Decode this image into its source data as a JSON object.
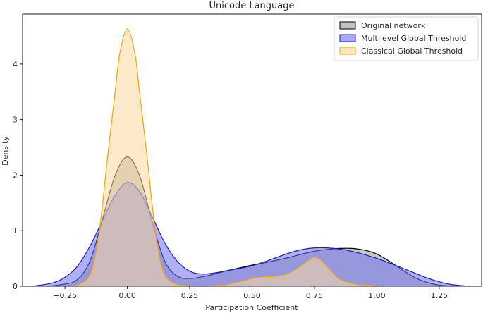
{
  "chart_data": {
    "type": "area",
    "title": "Unicode Language",
    "xlabel": "Participation Coefficient",
    "ylabel": "Density",
    "xlim": [
      -0.42,
      1.42
    ],
    "ylim": [
      0,
      4.9
    ],
    "xticks": [
      -0.25,
      0.0,
      0.25,
      0.5,
      0.75,
      1.0,
      1.25
    ],
    "xtick_labels": [
      "−0.25",
      "0.00",
      "0.25",
      "0.50",
      "0.75",
      "1.00",
      "1.25"
    ],
    "yticks": [
      0,
      1,
      2,
      3,
      4
    ],
    "ytick_labels": [
      "0",
      "1",
      "2",
      "3",
      "4"
    ],
    "grid": false,
    "legend_position": "top-right",
    "series": [
      {
        "name": "Original network",
        "color": "#000000",
        "fill": "#9a9a9a",
        "x": [
          -0.32,
          -0.25,
          -0.2,
          -0.15,
          -0.1,
          -0.05,
          0.0,
          0.05,
          0.1,
          0.15,
          0.2,
          0.25,
          0.3,
          0.35,
          0.4,
          0.45,
          0.5,
          0.55,
          0.6,
          0.65,
          0.7,
          0.75,
          0.8,
          0.85,
          0.9,
          0.95,
          1.0,
          1.05,
          1.1,
          1.15,
          1.2,
          1.25,
          1.3
        ],
        "y": [
          0.0,
          0.04,
          0.12,
          0.45,
          1.2,
          1.98,
          2.33,
          1.98,
          1.15,
          0.45,
          0.18,
          0.14,
          0.17,
          0.22,
          0.28,
          0.33,
          0.38,
          0.42,
          0.47,
          0.52,
          0.58,
          0.63,
          0.66,
          0.68,
          0.68,
          0.65,
          0.58,
          0.45,
          0.3,
          0.16,
          0.07,
          0.02,
          0.0
        ]
      },
      {
        "name": "Multilevel Global Threshold",
        "color": "#1a1ad6",
        "fill": "#6f6ff0",
        "x": [
          -0.38,
          -0.3,
          -0.25,
          -0.2,
          -0.15,
          -0.1,
          -0.05,
          0.0,
          0.05,
          0.1,
          0.15,
          0.2,
          0.25,
          0.3,
          0.35,
          0.4,
          0.45,
          0.5,
          0.55,
          0.6,
          0.65,
          0.7,
          0.75,
          0.8,
          0.85,
          0.9,
          0.95,
          1.0,
          1.05,
          1.1,
          1.15,
          1.2,
          1.25,
          1.3,
          1.37
        ],
        "y": [
          0.0,
          0.06,
          0.16,
          0.36,
          0.72,
          1.18,
          1.63,
          1.87,
          1.7,
          1.25,
          0.78,
          0.45,
          0.27,
          0.22,
          0.24,
          0.28,
          0.32,
          0.37,
          0.44,
          0.52,
          0.6,
          0.66,
          0.69,
          0.69,
          0.67,
          0.63,
          0.57,
          0.5,
          0.42,
          0.33,
          0.24,
          0.15,
          0.08,
          0.03,
          0.0
        ]
      },
      {
        "name": "Classical Global Threshold",
        "color": "#f5a300",
        "fill": "#fcd9a0",
        "x": [
          -0.23,
          -0.2,
          -0.15,
          -0.12,
          -0.1,
          -0.08,
          -0.05,
          -0.03,
          0.0,
          0.03,
          0.05,
          0.08,
          0.1,
          0.12,
          0.15,
          0.2,
          0.25,
          0.3,
          0.35,
          0.4,
          0.45,
          0.5,
          0.55,
          0.6,
          0.65,
          0.7,
          0.73,
          0.75,
          0.78,
          0.82,
          0.85,
          0.9,
          0.95,
          1.0,
          1.03
        ],
        "y": [
          0.0,
          0.02,
          0.2,
          0.75,
          1.45,
          2.3,
          3.45,
          4.2,
          4.63,
          4.2,
          3.45,
          2.3,
          1.45,
          0.75,
          0.2,
          0.03,
          0.01,
          0.0,
          0.01,
          0.03,
          0.08,
          0.14,
          0.17,
          0.18,
          0.24,
          0.38,
          0.48,
          0.52,
          0.45,
          0.26,
          0.13,
          0.05,
          0.02,
          0.01,
          0.0
        ]
      }
    ]
  }
}
